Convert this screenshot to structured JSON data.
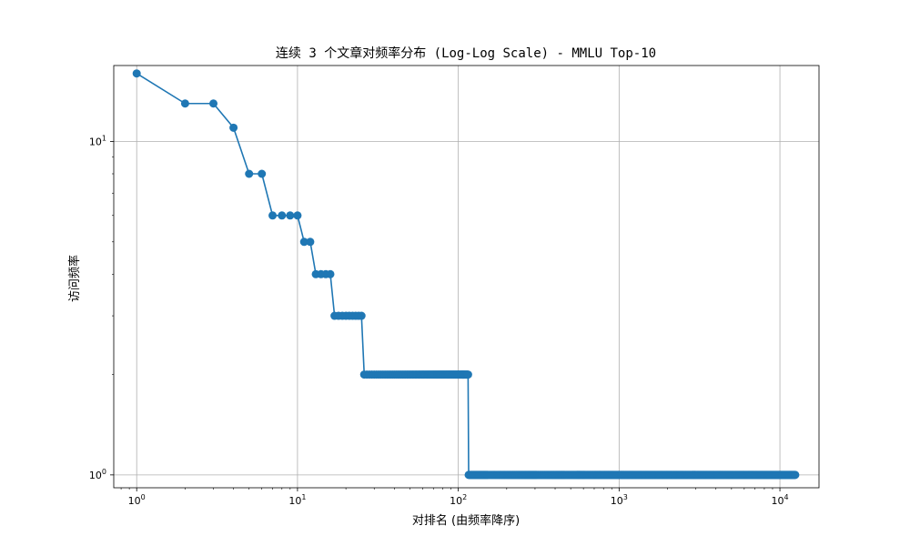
{
  "chart_data": {
    "type": "line",
    "title": "连续 3 个文章对频率分布 (Log-Log Scale) - MMLU Top-10",
    "xlabel": "对排名 (由频率降序)",
    "ylabel": "访问频率",
    "x_scale": "log",
    "y_scale": "log",
    "xlim": [
      0.72,
      17500
    ],
    "ylim": [
      0.915,
      16.9
    ],
    "grid": true,
    "x_ticks": [
      {
        "value": 1,
        "mantissa": "10",
        "exp": "0"
      },
      {
        "value": 10,
        "mantissa": "10",
        "exp": "1"
      },
      {
        "value": 100,
        "mantissa": "10",
        "exp": "2"
      },
      {
        "value": 1000,
        "mantissa": "10",
        "exp": "3"
      },
      {
        "value": 10000,
        "mantissa": "10",
        "exp": "4"
      }
    ],
    "y_ticks": [
      {
        "value": 1,
        "mantissa": "10",
        "exp": "0"
      },
      {
        "value": 10,
        "mantissa": "10",
        "exp": "1"
      }
    ],
    "series": [
      {
        "color": "#1f77b4",
        "marker": "circle",
        "runs": [
          {
            "x_start": 1,
            "x_end": 1,
            "y": 16
          },
          {
            "x_start": 2,
            "x_end": 3,
            "y": 13
          },
          {
            "x_start": 4,
            "x_end": 4,
            "y": 11
          },
          {
            "x_start": 5,
            "x_end": 6,
            "y": 8
          },
          {
            "x_start": 7,
            "x_end": 10,
            "y": 6
          },
          {
            "x_start": 11,
            "x_end": 12,
            "y": 5
          },
          {
            "x_start": 13,
            "x_end": 16,
            "y": 4
          },
          {
            "x_start": 17,
            "x_end": 25,
            "y": 3
          },
          {
            "x_start": 26,
            "x_end": 115,
            "y": 2
          },
          {
            "x_start": 116,
            "x_end": 12500,
            "y": 1
          }
        ]
      }
    ]
  }
}
